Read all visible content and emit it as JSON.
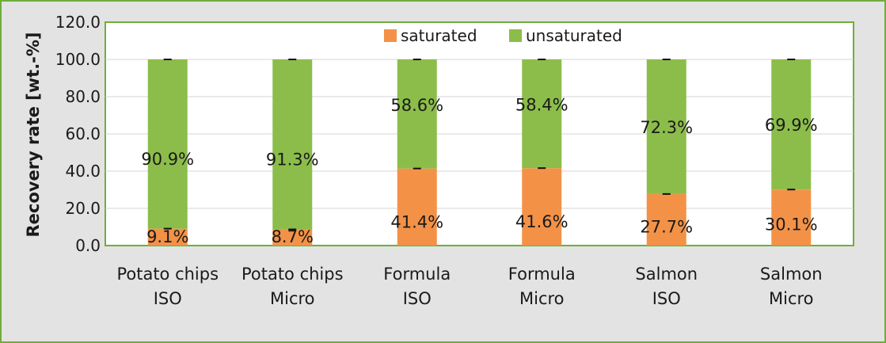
{
  "colors": {
    "saturated": "#f39247",
    "unsaturated": "#8cbd4a",
    "frame": "#6fae3a",
    "outer_background": "#e3e3e3",
    "plot_background": "#ffffff",
    "gridline": "#d4d4d4"
  },
  "chart_data": {
    "type": "bar",
    "stacked": true,
    "title": "",
    "xlabel": "",
    "ylabel": "Recovery rate [wt.-%]",
    "ylim": [
      0,
      120
    ],
    "yticks": [
      "0.0",
      "20.0",
      "40.0",
      "60.0",
      "80.0",
      "100.0",
      "120.0"
    ],
    "grid": true,
    "legend_position": "top-center",
    "categories": [
      [
        "Potato chips",
        "ISO"
      ],
      [
        "Potato chips",
        "Micro"
      ],
      [
        "Formula",
        "ISO"
      ],
      [
        "Formula",
        "Micro"
      ],
      [
        "Salmon",
        "ISO"
      ],
      [
        "Salmon",
        "Micro"
      ]
    ],
    "series": [
      {
        "name": "saturated",
        "values": [
          9.1,
          8.7,
          41.4,
          41.6,
          27.7,
          30.1
        ],
        "labels": [
          "9.1%",
          "8.7%",
          "41.4%",
          "41.6%",
          "27.7%",
          "30.1%"
        ]
      },
      {
        "name": "unsaturated",
        "values": [
          90.9,
          91.3,
          58.6,
          58.4,
          72.3,
          69.9
        ],
        "labels": [
          "90.9%",
          "91.3%",
          "58.6%",
          "58.4%",
          "72.3%",
          "69.9%"
        ]
      }
    ],
    "error_bars": true
  }
}
